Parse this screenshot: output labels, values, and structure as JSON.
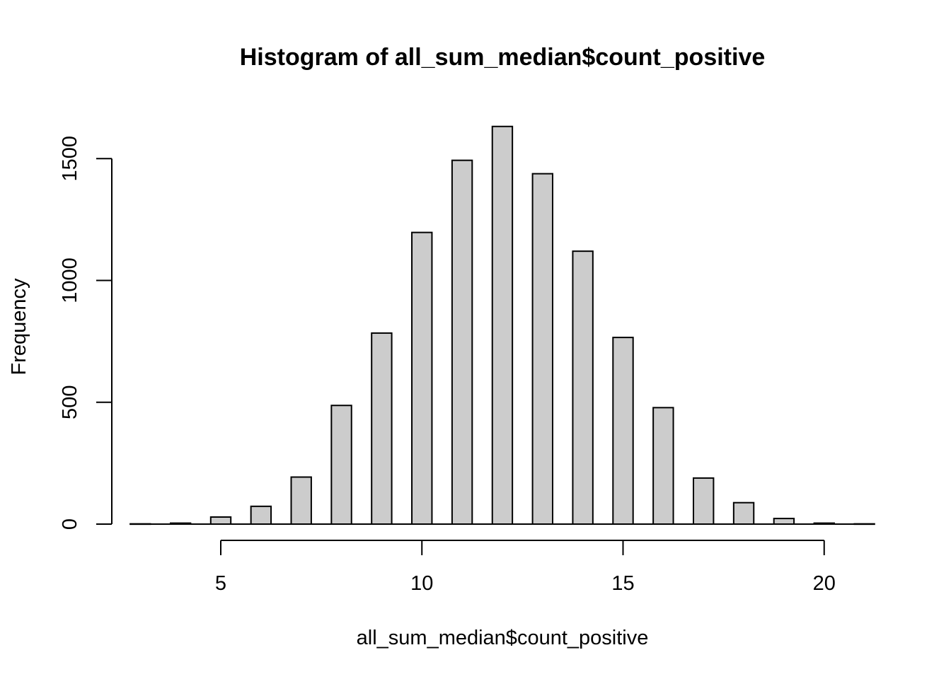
{
  "chart_data": {
    "type": "bar",
    "title": "Histogram of all_sum_median$count_positive",
    "xlabel": "all_sum_median$count_positive",
    "ylabel": "Frequency",
    "categories": [
      "3",
      "4",
      "5",
      "6",
      "7",
      "8",
      "9",
      "10",
      "11",
      "12",
      "13",
      "14",
      "15",
      "16",
      "17",
      "18",
      "19",
      "20",
      "21"
    ],
    "x": [
      3,
      4,
      5,
      6,
      7,
      8,
      9,
      10,
      11,
      12,
      13,
      14,
      15,
      16,
      17,
      18,
      19,
      20,
      21
    ],
    "values": [
      1,
      4,
      29,
      73,
      193,
      487,
      784,
      1197,
      1493,
      1632,
      1438,
      1120,
      766,
      478,
      189,
      88,
      23,
      4,
      1
    ],
    "xlim": [
      3,
      21
    ],
    "ylim": [
      0,
      1632
    ],
    "xticks": [
      5,
      10,
      15,
      20
    ],
    "yticks": [
      0,
      500,
      1000,
      1500
    ],
    "grid": false,
    "colors": {
      "bar_fill": "#cccccc",
      "bar_stroke": "#000000"
    }
  }
}
